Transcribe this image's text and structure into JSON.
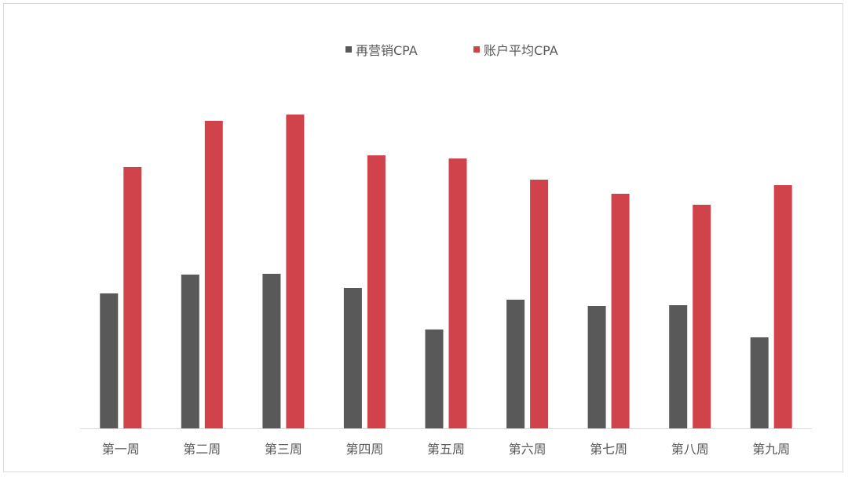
{
  "chart_data": {
    "type": "bar",
    "title": "",
    "xlabel": "",
    "ylabel": "",
    "categories": [
      "第一周",
      "第二周",
      "第三周",
      "第四周",
      "第五周",
      "第六周",
      "第七周",
      "第八周",
      "第九周"
    ],
    "series": [
      {
        "name": "再营销CPA",
        "color": "#595959",
        "values": [
          172,
          196,
          197,
          179,
          126,
          164,
          156,
          157,
          116
        ]
      },
      {
        "name": "账户平均CPA",
        "color": "#d1434b",
        "values": [
          333,
          392,
          400,
          348,
          344,
          317,
          299,
          285,
          310
        ]
      }
    ],
    "ylim": [
      0,
      450
    ],
    "grid": false,
    "legend_position": "top-center",
    "axis_color": "#d9d9d9"
  }
}
